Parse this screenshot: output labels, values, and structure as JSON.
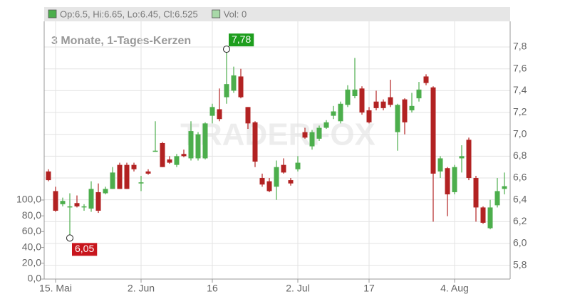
{
  "chart_data": {
    "type": "candlestick",
    "title": "3 Monate, 1-Tages-Kerzen",
    "watermark": "TRADERFOX",
    "legend": [
      {
        "label": "Op:6.5, Hi:6.65, Lo:6.45, Cl:6.525",
        "color": "#4cae4c"
      },
      {
        "label": "Vol: 0",
        "color": "#a8d8a8"
      }
    ],
    "up_color": "#4cae4c",
    "down_color": "#b22222",
    "grid": true,
    "categories": [
      null,
      "15. Mai",
      null,
      null,
      null,
      null,
      null,
      null,
      null,
      null,
      null,
      null,
      null,
      "2. Jun",
      null,
      null,
      null,
      null,
      null,
      null,
      null,
      null,
      null,
      "16",
      null,
      null,
      null,
      null,
      null,
      null,
      null,
      null,
      null,
      null,
      null,
      "2. Jul",
      null,
      null,
      null,
      null,
      null,
      null,
      null,
      null,
      null,
      "17",
      null,
      null,
      null,
      null,
      null,
      null,
      null,
      null,
      null,
      null,
      null,
      "4. Aug",
      null,
      null,
      null,
      null,
      null,
      null,
      null
    ],
    "open": [
      6.66,
      6.48,
      6.36,
      6.33,
      6.37,
      6.34,
      6.32,
      6.47,
      6.46,
      6.5,
      6.72,
      6.72,
      6.72,
      6.55,
      6.66,
      6.84,
      6.92,
      6.77,
      6.72,
      6.82,
      6.78,
      6.78,
      6.78,
      7.17,
      7.23,
      7.34,
      7.4,
      7.53,
      7.25,
      7.11,
      6.6,
      6.57,
      6.52,
      6.72,
      6.58,
      6.68,
      7.02,
      6.89,
      6.96,
      7.06,
      7.17,
      7.12,
      7.27,
      7.35,
      7.42,
      7.22,
      7.3,
      7.3,
      7.34,
      7.02,
      7.32,
      7.22,
      7.33,
      7.53,
      7.43,
      6.66,
      6.69,
      6.47,
      6.78,
      6.95,
      6.6,
      6.33,
      6.14,
      6.35,
      6.5
    ],
    "high": [
      6.68,
      6.52,
      6.42,
      6.46,
      6.44,
      6.36,
      6.57,
      6.55,
      6.52,
      6.7,
      6.74,
      6.74,
      6.74,
      6.62,
      6.68,
      7.12,
      6.93,
      6.8,
      6.82,
      6.86,
      7.12,
      7.02,
      7.11,
      7.28,
      7.42,
      7.78,
      7.62,
      7.6,
      7.25,
      7.12,
      6.64,
      6.6,
      6.76,
      6.78,
      6.6,
      6.8,
      7.06,
      7.04,
      7.08,
      7.13,
      7.26,
      7.3,
      7.45,
      7.7,
      7.44,
      7.25,
      7.4,
      7.32,
      7.5,
      7.28,
      7.33,
      7.38,
      7.48,
      7.55,
      7.44,
      6.8,
      6.7,
      6.72,
      6.9,
      6.97,
      6.62,
      6.34,
      6.4,
      6.6,
      6.65
    ],
    "low": [
      6.57,
      6.29,
      6.34,
      6.05,
      6.33,
      6.3,
      6.29,
      6.28,
      6.45,
      6.5,
      6.5,
      6.5,
      6.66,
      6.48,
      6.63,
      6.84,
      6.7,
      6.73,
      6.7,
      6.79,
      6.76,
      6.76,
      6.77,
      7.1,
      7.12,
      7.28,
      7.38,
      7.33,
      7.05,
      6.7,
      6.52,
      6.47,
      6.4,
      6.64,
      6.53,
      6.66,
      6.96,
      6.86,
      6.94,
      7.05,
      7.14,
      7.1,
      7.25,
      7.33,
      7.18,
      7.1,
      7.22,
      7.22,
      7.25,
      6.85,
      7.0,
      7.2,
      7.3,
      7.45,
      6.2,
      6.6,
      6.25,
      6.45,
      6.65,
      6.58,
      6.2,
      6.18,
      6.13,
      6.33,
      6.45
    ],
    "close": [
      6.58,
      6.3,
      6.39,
      6.34,
      6.34,
      6.34,
      6.5,
      6.3,
      6.5,
      6.65,
      6.5,
      6.5,
      6.68,
      6.56,
      6.64,
      6.85,
      6.7,
      6.74,
      6.8,
      6.8,
      7.03,
      7.0,
      7.1,
      7.25,
      7.14,
      7.46,
      7.54,
      7.34,
      7.1,
      6.75,
      6.54,
      6.48,
      6.7,
      6.65,
      6.55,
      6.74,
      6.97,
      7.02,
      7.06,
      7.11,
      7.21,
      7.28,
      7.41,
      7.41,
      7.2,
      7.11,
      7.24,
      7.24,
      7.27,
      7.27,
      7.11,
      7.26,
      7.41,
      7.47,
      6.64,
      6.78,
      6.45,
      6.7,
      6.8,
      6.6,
      6.33,
      6.19,
      6.33,
      6.48,
      6.525
    ],
    "annotations": [
      {
        "index": 25,
        "value": 7.78,
        "text": "7,78",
        "color": "#1e9e1e",
        "side": "above"
      },
      {
        "index": 3,
        "value": 6.05,
        "text": "6,05",
        "color": "#c8161d",
        "side": "below"
      }
    ],
    "ylim": [
      5.674,
      8.035
    ],
    "yticks": [
      {
        "value": 5.8,
        "label": "5,8"
      },
      {
        "value": 6.0,
        "label": "6,0"
      },
      {
        "value": 6.2,
        "label": "6,2"
      },
      {
        "value": 6.4,
        "label": "6,4"
      },
      {
        "value": 6.6,
        "label": "6,6"
      },
      {
        "value": 6.8,
        "label": "6,8"
      },
      {
        "value": 7.0,
        "label": "7,0"
      },
      {
        "value": 7.2,
        "label": "7,2"
      },
      {
        "value": 7.4,
        "label": "7,4"
      },
      {
        "value": 7.6,
        "label": "7,6"
      },
      {
        "value": 7.8,
        "label": "7,8"
      }
    ],
    "y2lim": [
      0,
      326
    ],
    "y2ticks": [
      {
        "value": 0,
        "label": "0,0"
      },
      {
        "value": 20,
        "label": "20,0"
      },
      {
        "value": 40,
        "label": "40,0"
      },
      {
        "value": 60,
        "label": "60,0"
      },
      {
        "value": 80,
        "label": "80,0"
      },
      {
        "value": 100,
        "label": "100,0"
      }
    ]
  }
}
